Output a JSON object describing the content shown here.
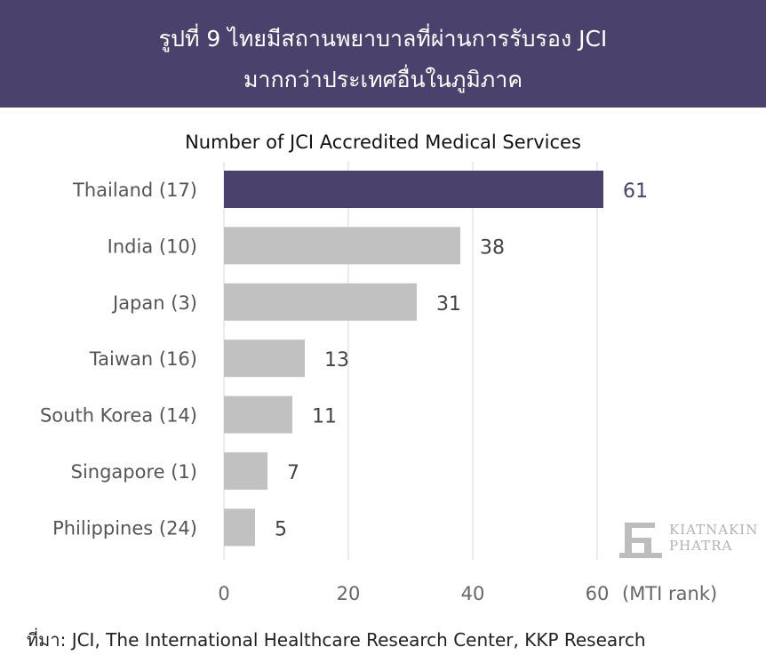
{
  "header": {
    "line1": "รูปที่ 9 ไทยมีสถานพยาบาลที่ผ่านการรับรอง JCI",
    "line2": "มากกว่าประเทศอื่นในภูมิภาค"
  },
  "logo": {
    "line1": "KIATNAKIN",
    "line2": "PHATRA"
  },
  "source": "ที่มา: JCI, The International Healthcare Research Center, KKP Research",
  "colors": {
    "header_bg": "#4a416c",
    "highlight": "#4a416c",
    "bar": "#c1c1c1",
    "axis_label": "#666666",
    "category_label": "#555555"
  },
  "chart_data": {
    "type": "bar",
    "orientation": "horizontal",
    "title": "Number of JCI Accredited Medical Services",
    "xlabel": "(MTI rank)",
    "categories": [
      "Thailand (17)",
      "India (10)",
      "Japan (3)",
      "Taiwan (16)",
      "South Korea (14)",
      "Singapore (1)",
      "Philippines (24)"
    ],
    "values": [
      61,
      38,
      31,
      13,
      11,
      7,
      5
    ],
    "highlight_category": "Thailand (17)",
    "xlim": [
      0,
      60
    ],
    "xticks": [
      0,
      20,
      40,
      60
    ],
    "grid": "vertical",
    "data_labels": true
  }
}
